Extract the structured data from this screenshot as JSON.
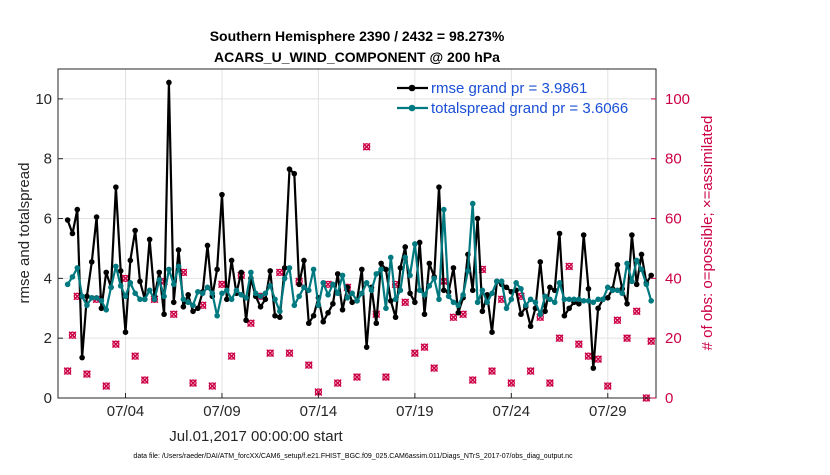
{
  "chart_data": {
    "type": "line",
    "title": "Southern Hemisphere 2390 / 2432 = 98.273%",
    "subtitle": "ACARS_U_WIND_COMPONENT @ 200 hPa",
    "xlabel": "Jul.01,2017 00:00:00 start",
    "ylabel": "rmse and totalspread",
    "y2label": "# of obs: o=possible; ×=assimilated",
    "footnote": "data file: /Users/raeder/DAI/ATM_forcXX/CAM6_setup/f.e21.FHIST_BGC.f09_025.CAM6assim.011/Diags_NTrS_2017-07/obs_diag_output.nc",
    "x_range": [
      0.5,
      31.5
    ],
    "ylim": [
      0,
      11
    ],
    "y2lim": [
      0,
      110
    ],
    "grid": true,
    "x_ticks": [
      {
        "x": 4,
        "label": "07/04"
      },
      {
        "x": 9,
        "label": "07/09"
      },
      {
        "x": 14,
        "label": "07/14"
      },
      {
        "x": 19,
        "label": "07/19"
      },
      {
        "x": 24,
        "label": "07/24"
      },
      {
        "x": 29,
        "label": "07/29"
      }
    ],
    "y_ticks": [
      {
        "v": 0,
        "label": "0"
      },
      {
        "v": 2,
        "label": "2"
      },
      {
        "v": 4,
        "label": "4"
      },
      {
        "v": 6,
        "label": "6"
      },
      {
        "v": 8,
        "label": "8"
      },
      {
        "v": 10,
        "label": "10"
      }
    ],
    "y2_ticks": [
      {
        "v": 0,
        "label": "0"
      },
      {
        "v": 20,
        "label": "20"
      },
      {
        "v": 40,
        "label": "40"
      },
      {
        "v": 60,
        "label": "60"
      },
      {
        "v": 80,
        "label": "80"
      },
      {
        "v": 100,
        "label": "100"
      }
    ],
    "series": [
      {
        "name": "rmse",
        "label": "rmse grand pr = 3.9861",
        "color": "#000000",
        "axis": "left",
        "x": [
          1.0,
          1.25,
          1.5,
          1.75,
          2.0,
          2.25,
          2.5,
          2.75,
          3.0,
          3.25,
          3.5,
          3.75,
          4.0,
          4.25,
          4.5,
          4.75,
          5.0,
          5.25,
          5.5,
          5.75,
          6.0,
          6.25,
          6.5,
          6.75,
          7.0,
          7.25,
          7.5,
          7.75,
          8.0,
          8.25,
          8.5,
          8.75,
          9.0,
          9.25,
          9.5,
          9.75,
          10.0,
          10.25,
          10.5,
          10.75,
          11.0,
          11.25,
          11.5,
          11.75,
          12.0,
          12.25,
          12.5,
          12.75,
          13.0,
          13.25,
          13.5,
          13.75,
          14.0,
          14.25,
          14.5,
          14.75,
          15.0,
          15.25,
          15.5,
          15.75,
          16.0,
          16.25,
          16.5,
          16.75,
          17.0,
          17.25,
          17.5,
          17.75,
          18.0,
          18.25,
          18.5,
          18.75,
          19.0,
          19.25,
          19.5,
          19.75,
          20.0,
          20.25,
          20.5,
          20.75,
          21.0,
          21.25,
          21.5,
          21.75,
          22.0,
          22.25,
          22.5,
          22.75,
          23.0,
          23.25,
          23.5,
          23.75,
          24.0,
          24.25,
          24.5,
          24.75,
          25.0,
          25.25,
          25.5,
          25.75,
          26.0,
          26.25,
          26.5,
          26.75,
          27.0,
          27.25,
          27.5,
          27.75,
          28.0,
          28.25,
          28.5,
          28.75,
          29.0,
          29.25,
          29.5,
          29.75,
          30.0,
          30.25,
          30.5,
          30.75,
          31.0,
          31.25
        ],
        "values": [
          5.95,
          5.5,
          6.3,
          1.35,
          3.4,
          4.55,
          6.05,
          3.0,
          4.2,
          3.7,
          7.05,
          4.25,
          2.2,
          4.6,
          5.6,
          3.9,
          3.3,
          5.3,
          3.4,
          4.2,
          2.8,
          10.55,
          3.2,
          4.95,
          3.05,
          3.45,
          2.9,
          3.0,
          3.55,
          5.1,
          3.4,
          4.3,
          6.8,
          3.3,
          4.6,
          3.5,
          4.2,
          2.6,
          4.0,
          3.4,
          3.05,
          3.3,
          4.25,
          2.75,
          2.7,
          4.35,
          7.65,
          7.5,
          3.8,
          4.6,
          2.5,
          2.75,
          3.35,
          2.55,
          2.85,
          3.15,
          4.15,
          2.95,
          3.7,
          3.2,
          3.25,
          4.3,
          1.7,
          3.7,
          2.5,
          4.5,
          4.3,
          3.25,
          2.7,
          4.35,
          5.05,
          3.5,
          3.2,
          5.2,
          2.8,
          4.5,
          4.05,
          7.05,
          3.6,
          3.55,
          4.35,
          2.85,
          3.35,
          4.8,
          3.6,
          6.0,
          2.9,
          3.45,
          2.2,
          3.9,
          3.8,
          3.7,
          3.55,
          3.6,
          2.8,
          3.05,
          2.4,
          3.0,
          4.55,
          2.9,
          3.7,
          3.6,
          5.5,
          2.75,
          3.0,
          3.2,
          3.15,
          5.45,
          3.65,
          1.0,
          3.0,
          3.3,
          3.35,
          3.65,
          4.45,
          3.65,
          3.15,
          5.45,
          3.8,
          4.8,
          3.85,
          4.1
        ]
      },
      {
        "name": "totalspread",
        "label": "totalspread grand pr = 3.6066",
        "color": "#007a80",
        "axis": "left",
        "x": [
          1.0,
          1.25,
          1.5,
          1.75,
          2.0,
          2.25,
          2.5,
          2.75,
          3.0,
          3.25,
          3.5,
          3.75,
          4.0,
          4.25,
          4.5,
          4.75,
          5.0,
          5.25,
          5.5,
          5.75,
          6.0,
          6.25,
          6.5,
          6.75,
          7.0,
          7.25,
          7.5,
          7.75,
          8.0,
          8.25,
          8.5,
          8.75,
          9.0,
          9.25,
          9.5,
          9.75,
          10.0,
          10.25,
          10.5,
          10.75,
          11.0,
          11.25,
          11.5,
          11.75,
          12.0,
          12.25,
          12.5,
          12.75,
          13.0,
          13.25,
          13.5,
          13.75,
          14.0,
          14.25,
          14.5,
          14.75,
          15.0,
          15.25,
          15.5,
          15.75,
          16.0,
          16.25,
          16.5,
          16.75,
          17.0,
          17.25,
          17.5,
          17.75,
          18.0,
          18.25,
          18.5,
          18.75,
          19.0,
          19.25,
          19.5,
          19.75,
          20.0,
          20.25,
          20.5,
          20.75,
          21.0,
          21.25,
          21.5,
          21.75,
          22.0,
          22.25,
          22.5,
          22.75,
          23.0,
          23.25,
          23.5,
          23.75,
          24.0,
          24.25,
          24.5,
          24.75,
          25.0,
          25.25,
          25.5,
          25.75,
          26.0,
          26.25,
          26.5,
          26.75,
          27.0,
          27.25,
          27.5,
          27.75,
          28.0,
          28.25,
          28.5,
          28.75,
          29.0,
          29.25,
          29.5,
          29.75,
          30.0,
          30.25,
          30.5,
          30.75,
          31.0,
          31.25
        ],
        "values": [
          3.8,
          4.05,
          4.35,
          3.4,
          3.1,
          3.35,
          3.35,
          3.25,
          2.95,
          3.7,
          4.4,
          3.75,
          3.4,
          3.85,
          3.5,
          3.3,
          3.3,
          3.6,
          3.3,
          3.95,
          3.4,
          4.3,
          3.8,
          4.4,
          3.3,
          3.2,
          3.1,
          3.55,
          3.5,
          3.7,
          3.5,
          2.75,
          3.5,
          3.6,
          3.3,
          3.6,
          3.45,
          3.35,
          4.2,
          3.5,
          3.4,
          3.5,
          3.75,
          3.3,
          2.9,
          4.0,
          4.35,
          3.1,
          3.4,
          3.7,
          3.6,
          4.3,
          3.1,
          3.85,
          3.45,
          3.8,
          3.5,
          4.1,
          3.35,
          3.5,
          3.25,
          3.5,
          3.85,
          3.6,
          4.15,
          4.3,
          3.0,
          4.7,
          3.3,
          3.6,
          4.7,
          4.1,
          5.15,
          3.6,
          3.45,
          3.75,
          4.0,
          3.3,
          6.3,
          3.4,
          3.2,
          3.1,
          3.45,
          4.25,
          6.5,
          3.2,
          3.6,
          3.2,
          3.5,
          3.9,
          3.9,
          3.0,
          3.3,
          3.85,
          3.65,
          3.1,
          3.3,
          3.2,
          2.8,
          3.4,
          3.3,
          3.2,
          3.85,
          3.3,
          3.3,
          3.3,
          3.3,
          3.25,
          3.25,
          3.2,
          3.3,
          3.3,
          3.7,
          3.6,
          3.6,
          3.5,
          4.5,
          3.9,
          4.6,
          4.3,
          3.8,
          3.25
        ]
      },
      {
        "name": "obs-possible",
        "label": "o=possible",
        "color": "#cc0044",
        "marker": "o",
        "axis": "right",
        "x": [
          1.0,
          1.25,
          1.5,
          2.0,
          2.5,
          3.0,
          3.5,
          4.0,
          4.5,
          5.0,
          5.5,
          6.0,
          6.5,
          7.0,
          7.5,
          8.0,
          8.5,
          9.0,
          9.5,
          10.0,
          10.5,
          11.0,
          11.5,
          12.0,
          12.5,
          13.0,
          13.5,
          14.0,
          14.5,
          15.0,
          15.5,
          16.0,
          16.5,
          17.0,
          17.5,
          18.0,
          18.5,
          19.0,
          19.5,
          20.0,
          20.5,
          21.0,
          21.5,
          22.0,
          22.5,
          23.0,
          23.5,
          24.0,
          24.5,
          25.0,
          25.5,
          26.0,
          26.5,
          27.0,
          27.5,
          28.0,
          28.5,
          29.0,
          29.5,
          30.0,
          30.5,
          31.0,
          31.25
        ],
        "values": [
          9,
          21,
          34,
          8,
          33,
          4,
          18,
          40,
          14,
          6,
          33,
          39,
          28,
          42,
          5,
          31,
          4,
          38,
          14,
          41,
          25,
          34,
          15,
          42,
          15,
          39,
          11,
          2,
          38,
          5,
          37,
          7,
          84,
          28,
          7,
          38,
          32,
          15,
          17,
          10,
          39,
          27,
          28,
          6,
          43,
          9,
          33,
          5,
          34,
          9,
          27,
          5,
          20,
          44,
          18,
          14,
          13,
          4,
          26,
          20,
          29,
          0,
          19
        ],
        "assimilated": [
          9,
          21,
          34,
          8,
          33,
          4,
          18,
          40,
          14,
          6,
          33,
          39,
          28,
          42,
          5,
          31,
          4,
          38,
          14,
          41,
          25,
          34,
          15,
          42,
          15,
          39,
          11,
          2,
          38,
          5,
          37,
          7,
          84,
          28,
          7,
          38,
          32,
          15,
          17,
          10,
          39,
          27,
          28,
          6,
          43,
          9,
          33,
          5,
          34,
          9,
          27,
          5,
          20,
          44,
          18,
          14,
          13,
          4,
          26,
          20,
          29,
          0,
          19
        ]
      }
    ]
  }
}
